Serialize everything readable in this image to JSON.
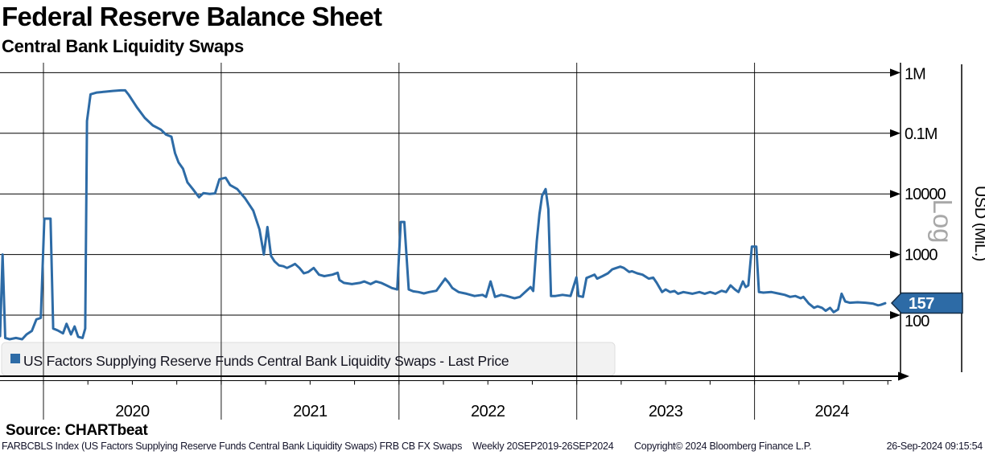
{
  "header": {
    "title": "Federal Reserve Balance Sheet",
    "subtitle": "Central Bank Liquidity Swaps"
  },
  "legend": {
    "label": "US Factors Supplying Reserve Funds Central Bank Liquidity Swaps - Last Price",
    "marker_color": "#2d6ba6"
  },
  "y_axis": {
    "title": "USD (MiL.)",
    "scale_label": "Log"
  },
  "last_price": {
    "value": "157"
  },
  "source": {
    "label": "Source: CHARTbeat"
  },
  "footer": {
    "index_info": "FARBCBLS Index (US Factors Supplying Reserve Funds Central Bank Liquidity Swaps) FRB CB FX Swaps",
    "range_info": "Weekly 20SEP2019-26SEP2024",
    "copyright": "Copyright© 2024 Bloomberg Finance L.P.",
    "timestamp": "26-Sep-2024 09:15:54"
  },
  "colors": {
    "line": "#2d6ba6",
    "badge_fill": "#2d6ba6",
    "badge_border": "#152c44",
    "grid": "#1a1a1a",
    "legend_bg": "#f2f2f2",
    "legend_border": "#dedede",
    "log_watermark": "#a8a8a8"
  },
  "chart_data": {
    "type": "line",
    "title": "Federal Reserve Balance Sheet",
    "subtitle": "Central Bank Liquidity Swaps",
    "series_name": "US Factors Supplying Reserve Funds Central Bank Liquidity Swaps - Last Price",
    "x_unit": "decimal_year",
    "x_range": [
      2019.756,
      2024.74
    ],
    "x_tick_labels": [
      "2020",
      "2021",
      "2022",
      "2023",
      "2024"
    ],
    "y_unit": "USD (MiL.)",
    "y_scale": "log",
    "y_ticks": [
      {
        "label": "1M",
        "value": 1000000
      },
      {
        "label": "0.1M",
        "value": 100000
      },
      {
        "label": "10000",
        "value": 10000
      },
      {
        "label": "1000",
        "value": 1000
      },
      {
        "label": "100",
        "value": 100
      }
    ],
    "last_price": 157,
    "grid": true,
    "legend_position": "bottom-left",
    "points": [
      [
        2019.756,
        45
      ],
      [
        2019.77,
        1000
      ],
      [
        2019.785,
        42
      ],
      [
        2019.81,
        40
      ],
      [
        2019.845,
        42
      ],
      [
        2019.88,
        40
      ],
      [
        2019.905,
        48
      ],
      [
        2019.935,
        55
      ],
      [
        2019.96,
        85
      ],
      [
        2019.985,
        90
      ],
      [
        2020.005,
        3900
      ],
      [
        2020.04,
        3900
      ],
      [
        2020.055,
        60
      ],
      [
        2020.08,
        56
      ],
      [
        2020.11,
        50
      ],
      [
        2020.13,
        72
      ],
      [
        2020.155,
        48
      ],
      [
        2020.175,
        65
      ],
      [
        2020.195,
        44
      ],
      [
        2020.22,
        42
      ],
      [
        2020.235,
        60
      ],
      [
        2020.245,
        160000
      ],
      [
        2020.265,
        440000
      ],
      [
        2020.3,
        470000
      ],
      [
        2020.345,
        485000
      ],
      [
        2020.39,
        500000
      ],
      [
        2020.435,
        510000
      ],
      [
        2020.46,
        510000
      ],
      [
        2020.48,
        430000
      ],
      [
        2020.525,
        270000
      ],
      [
        2020.57,
        180000
      ],
      [
        2020.615,
        135000
      ],
      [
        2020.66,
        115000
      ],
      [
        2020.69,
        95000
      ],
      [
        2020.72,
        88000
      ],
      [
        2020.74,
        47000
      ],
      [
        2020.76,
        33000
      ],
      [
        2020.785,
        26000
      ],
      [
        2020.81,
        15500
      ],
      [
        2020.84,
        12000
      ],
      [
        2020.875,
        8800
      ],
      [
        2020.9,
        10300
      ],
      [
        2020.935,
        10000
      ],
      [
        2020.965,
        10200
      ],
      [
        2020.99,
        17500
      ],
      [
        2021.025,
        18500
      ],
      [
        2021.05,
        14000
      ],
      [
        2021.09,
        12000
      ],
      [
        2021.135,
        8400
      ],
      [
        2021.18,
        5300
      ],
      [
        2021.215,
        2600
      ],
      [
        2021.24,
        1000
      ],
      [
        2021.26,
        2840
      ],
      [
        2021.28,
        950
      ],
      [
        2021.3,
        770
      ],
      [
        2021.325,
        660
      ],
      [
        2021.35,
        640
      ],
      [
        2021.37,
        600
      ],
      [
        2021.395,
        650
      ],
      [
        2021.415,
        700
      ],
      [
        2021.44,
        600
      ],
      [
        2021.465,
        490
      ],
      [
        2021.49,
        515
      ],
      [
        2021.52,
        600
      ],
      [
        2021.55,
        465
      ],
      [
        2021.58,
        440
      ],
      [
        2021.625,
        465
      ],
      [
        2021.655,
        500
      ],
      [
        2021.665,
        380
      ],
      [
        2021.69,
        340
      ],
      [
        2021.735,
        325
      ],
      [
        2021.78,
        340
      ],
      [
        2021.805,
        360
      ],
      [
        2021.84,
        325
      ],
      [
        2021.87,
        360
      ],
      [
        2021.9,
        340
      ],
      [
        2021.93,
        310
      ],
      [
        2021.96,
        280
      ],
      [
        2021.99,
        265
      ],
      [
        2022.01,
        3440
      ],
      [
        2022.03,
        3440
      ],
      [
        2022.055,
        265
      ],
      [
        2022.08,
        247
      ],
      [
        2022.11,
        240
      ],
      [
        2022.14,
        228
      ],
      [
        2022.17,
        240
      ],
      [
        2022.21,
        252
      ],
      [
        2022.26,
        400
      ],
      [
        2022.28,
        340
      ],
      [
        2022.3,
        280
      ],
      [
        2022.335,
        240
      ],
      [
        2022.38,
        225
      ],
      [
        2022.425,
        207
      ],
      [
        2022.47,
        216
      ],
      [
        2022.49,
        200
      ],
      [
        2022.515,
        360
      ],
      [
        2022.54,
        200
      ],
      [
        2022.575,
        216
      ],
      [
        2022.605,
        207
      ],
      [
        2022.65,
        190
      ],
      [
        2022.68,
        200
      ],
      [
        2022.725,
        265
      ],
      [
        2022.74,
        290
      ],
      [
        2022.755,
        250
      ],
      [
        2022.775,
        1660
      ],
      [
        2022.79,
        4600
      ],
      [
        2022.805,
        9300
      ],
      [
        2022.825,
        12000
      ],
      [
        2022.84,
        5600
      ],
      [
        2022.855,
        207
      ],
      [
        2022.88,
        207
      ],
      [
        2022.92,
        216
      ],
      [
        2022.965,
        207
      ],
      [
        2022.998,
        420
      ],
      [
        2023.01,
        207
      ],
      [
        2023.035,
        200
      ],
      [
        2023.055,
        410
      ],
      [
        2023.08,
        440
      ],
      [
        2023.1,
        465
      ],
      [
        2023.115,
        400
      ],
      [
        2023.145,
        440
      ],
      [
        2023.175,
        490
      ],
      [
        2023.2,
        570
      ],
      [
        2023.245,
        630
      ],
      [
        2023.265,
        600
      ],
      [
        2023.295,
        515
      ],
      [
        2023.31,
        530
      ],
      [
        2023.34,
        490
      ],
      [
        2023.37,
        465
      ],
      [
        2023.405,
        400
      ],
      [
        2023.43,
        415
      ],
      [
        2023.45,
        340
      ],
      [
        2023.48,
        240
      ],
      [
        2023.5,
        265
      ],
      [
        2023.525,
        240
      ],
      [
        2023.55,
        250
      ],
      [
        2023.57,
        225
      ],
      [
        2023.6,
        240
      ],
      [
        2023.65,
        225
      ],
      [
        2023.69,
        240
      ],
      [
        2023.72,
        225
      ],
      [
        2023.75,
        240
      ],
      [
        2023.78,
        225
      ],
      [
        2023.815,
        252
      ],
      [
        2023.84,
        240
      ],
      [
        2023.865,
        310
      ],
      [
        2023.89,
        265
      ],
      [
        2023.91,
        240
      ],
      [
        2023.935,
        360
      ],
      [
        2023.95,
        290
      ],
      [
        2023.965,
        310
      ],
      [
        2023.985,
        1350
      ],
      [
        2024.01,
        1350
      ],
      [
        2024.025,
        240
      ],
      [
        2024.05,
        235
      ],
      [
        2024.095,
        240
      ],
      [
        2024.14,
        225
      ],
      [
        2024.17,
        216
      ],
      [
        2024.2,
        200
      ],
      [
        2024.23,
        207
      ],
      [
        2024.26,
        190
      ],
      [
        2024.275,
        200
      ],
      [
        2024.305,
        155
      ],
      [
        2024.335,
        132
      ],
      [
        2024.355,
        140
      ],
      [
        2024.38,
        132
      ],
      [
        2024.4,
        118
      ],
      [
        2024.425,
        132
      ],
      [
        2024.445,
        112
      ],
      [
        2024.47,
        124
      ],
      [
        2024.49,
        225
      ],
      [
        2024.51,
        168
      ],
      [
        2024.535,
        160
      ],
      [
        2024.58,
        163
      ],
      [
        2024.625,
        160
      ],
      [
        2024.665,
        155
      ],
      [
        2024.695,
        145
      ],
      [
        2024.71,
        148
      ],
      [
        2024.735,
        157
      ]
    ]
  }
}
